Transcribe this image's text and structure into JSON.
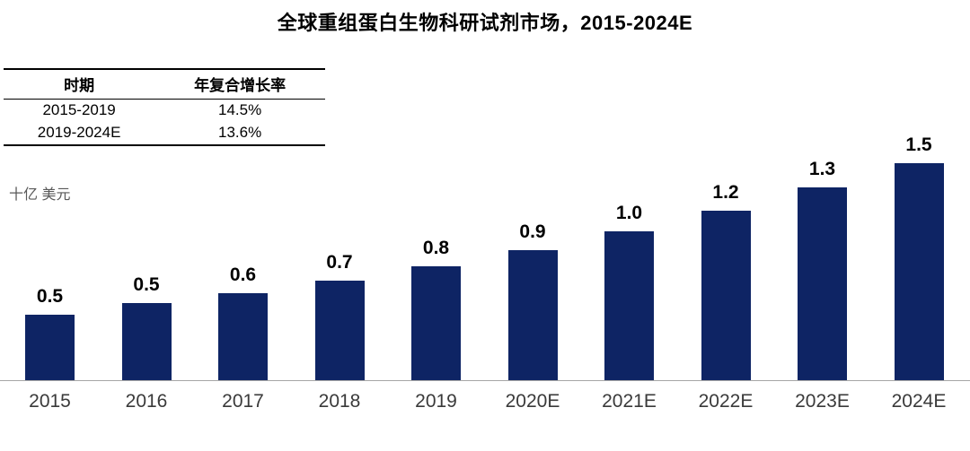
{
  "title": "全球重组蛋白生物科研试剂市场，2015-2024E",
  "unit_label": "十亿 美元",
  "cagr_table": {
    "headers": [
      "时期",
      "年复合增长率"
    ],
    "rows": [
      [
        "2015-2019",
        "14.5%"
      ],
      [
        "2019-2024E",
        "13.6%"
      ]
    ]
  },
  "chart_data": {
    "type": "bar",
    "title": "全球重组蛋白生物科研试剂市场，2015-2024E",
    "categories": [
      "2015",
      "2016",
      "2017",
      "2018",
      "2019",
      "2020E",
      "2021E",
      "2022E",
      "2023E",
      "2024E"
    ],
    "values": [
      0.5,
      0.5,
      0.6,
      0.7,
      0.8,
      0.9,
      1.0,
      1.2,
      1.3,
      1.5
    ],
    "labels": [
      "0.5",
      "0.5",
      "0.6",
      "0.7",
      "0.8",
      "0.9",
      "1.0",
      "1.2",
      "1.3",
      "1.5"
    ],
    "estimated_values": [
      0.45,
      0.53,
      0.6,
      0.69,
      0.79,
      0.9,
      1.03,
      1.17,
      1.33,
      1.5
    ],
    "xlabel": "",
    "ylabel": "十亿 美元",
    "ylim": [
      0,
      1.6
    ],
    "grid": false,
    "legend": "none",
    "bar_color": "#0e2464"
  },
  "colors": {
    "bar": "#0e2464",
    "axis": "#a6a6a6",
    "unit_text": "#595959",
    "value_label_text": "#000000",
    "year_label_text": "#3a3a3a",
    "table_border": "#000000"
  }
}
